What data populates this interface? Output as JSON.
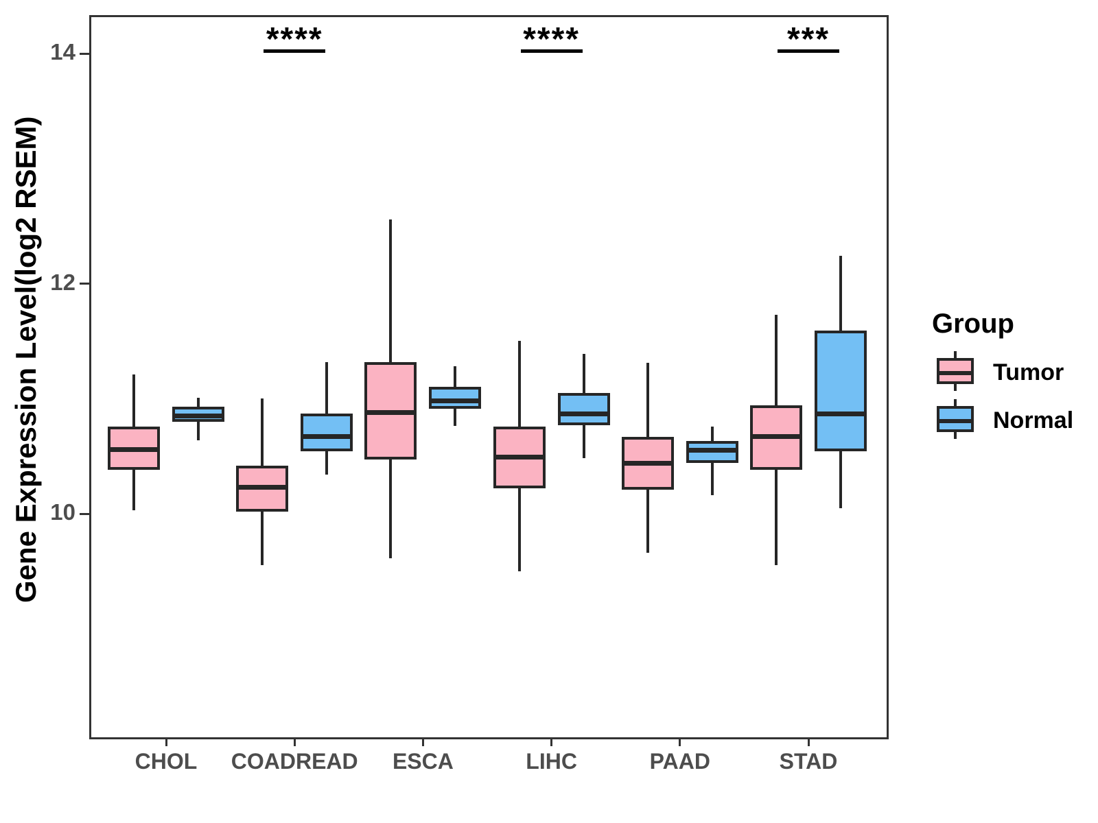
{
  "chart_data": {
    "type": "boxplot",
    "ylabel": "Gene Expression Level(log2 RSEM)",
    "xlabel": "",
    "categories": [
      "CHOL",
      "COADREAD",
      "ESCA",
      "LIHC",
      "PAAD",
      "STAD"
    ],
    "yticks": [
      10,
      12,
      14
    ],
    "ylim": [
      8.05,
      14.35
    ],
    "grid": false,
    "colors": {
      "tumor_fill": "#FBB3C2",
      "normal_fill": "#73BFF4",
      "box_stroke": "#262626",
      "panel_border": "#333333",
      "axis_text": "#4d4d4d"
    },
    "series": [
      {
        "name": "Tumor",
        "fill": "#FBB3C2",
        "boxes": [
          {
            "category": "CHOL",
            "whisker_low": 10.03,
            "q1": 10.38,
            "median": 10.56,
            "q3": 10.76,
            "whisker_high": 11.21
          },
          {
            "category": "COADREAD",
            "whisker_low": 9.55,
            "q1": 10.02,
            "median": 10.23,
            "q3": 10.42,
            "whisker_high": 11.0
          },
          {
            "category": "ESCA",
            "whisker_low": 9.61,
            "q1": 10.47,
            "median": 10.88,
            "q3": 11.32,
            "whisker_high": 12.56
          },
          {
            "category": "LIHC",
            "whisker_low": 9.5,
            "q1": 10.22,
            "median": 10.49,
            "q3": 10.76,
            "whisker_high": 11.5
          },
          {
            "category": "PAAD",
            "whisker_low": 9.66,
            "q1": 10.21,
            "median": 10.44,
            "q3": 10.67,
            "whisker_high": 11.31
          },
          {
            "category": "STAD",
            "whisker_low": 9.55,
            "q1": 10.38,
            "median": 10.67,
            "q3": 10.94,
            "whisker_high": 11.73
          }
        ]
      },
      {
        "name": "Normal",
        "fill": "#73BFF4",
        "boxes": [
          {
            "category": "CHOL",
            "whisker_low": 10.64,
            "q1": 10.8,
            "median": 10.85,
            "q3": 10.93,
            "whisker_high": 11.01
          },
          {
            "category": "COADREAD",
            "whisker_low": 10.34,
            "q1": 10.54,
            "median": 10.67,
            "q3": 10.87,
            "whisker_high": 11.32
          },
          {
            "category": "ESCA",
            "whisker_low": 10.76,
            "q1": 10.91,
            "median": 10.98,
            "q3": 11.1,
            "whisker_high": 11.28
          },
          {
            "category": "LIHC",
            "whisker_low": 10.48,
            "q1": 10.77,
            "median": 10.87,
            "q3": 11.05,
            "whisker_high": 11.39
          },
          {
            "category": "PAAD",
            "whisker_low": 10.16,
            "q1": 10.44,
            "median": 10.55,
            "q3": 10.63,
            "whisker_high": 10.76
          },
          {
            "category": "STAD",
            "whisker_low": 10.05,
            "q1": 10.54,
            "median": 10.87,
            "q3": 11.59,
            "whisker_high": 12.24
          }
        ]
      }
    ],
    "annotations": [
      {
        "category": "COADREAD",
        "text": "****"
      },
      {
        "category": "LIHC",
        "text": "****"
      },
      {
        "category": "STAD",
        "text": "***"
      }
    ],
    "legend": {
      "title": "Group",
      "position": "right",
      "entries": [
        {
          "label": "Tumor",
          "color": "#FBB3C2"
        },
        {
          "label": "Normal",
          "color": "#73BFF4"
        }
      ]
    }
  }
}
